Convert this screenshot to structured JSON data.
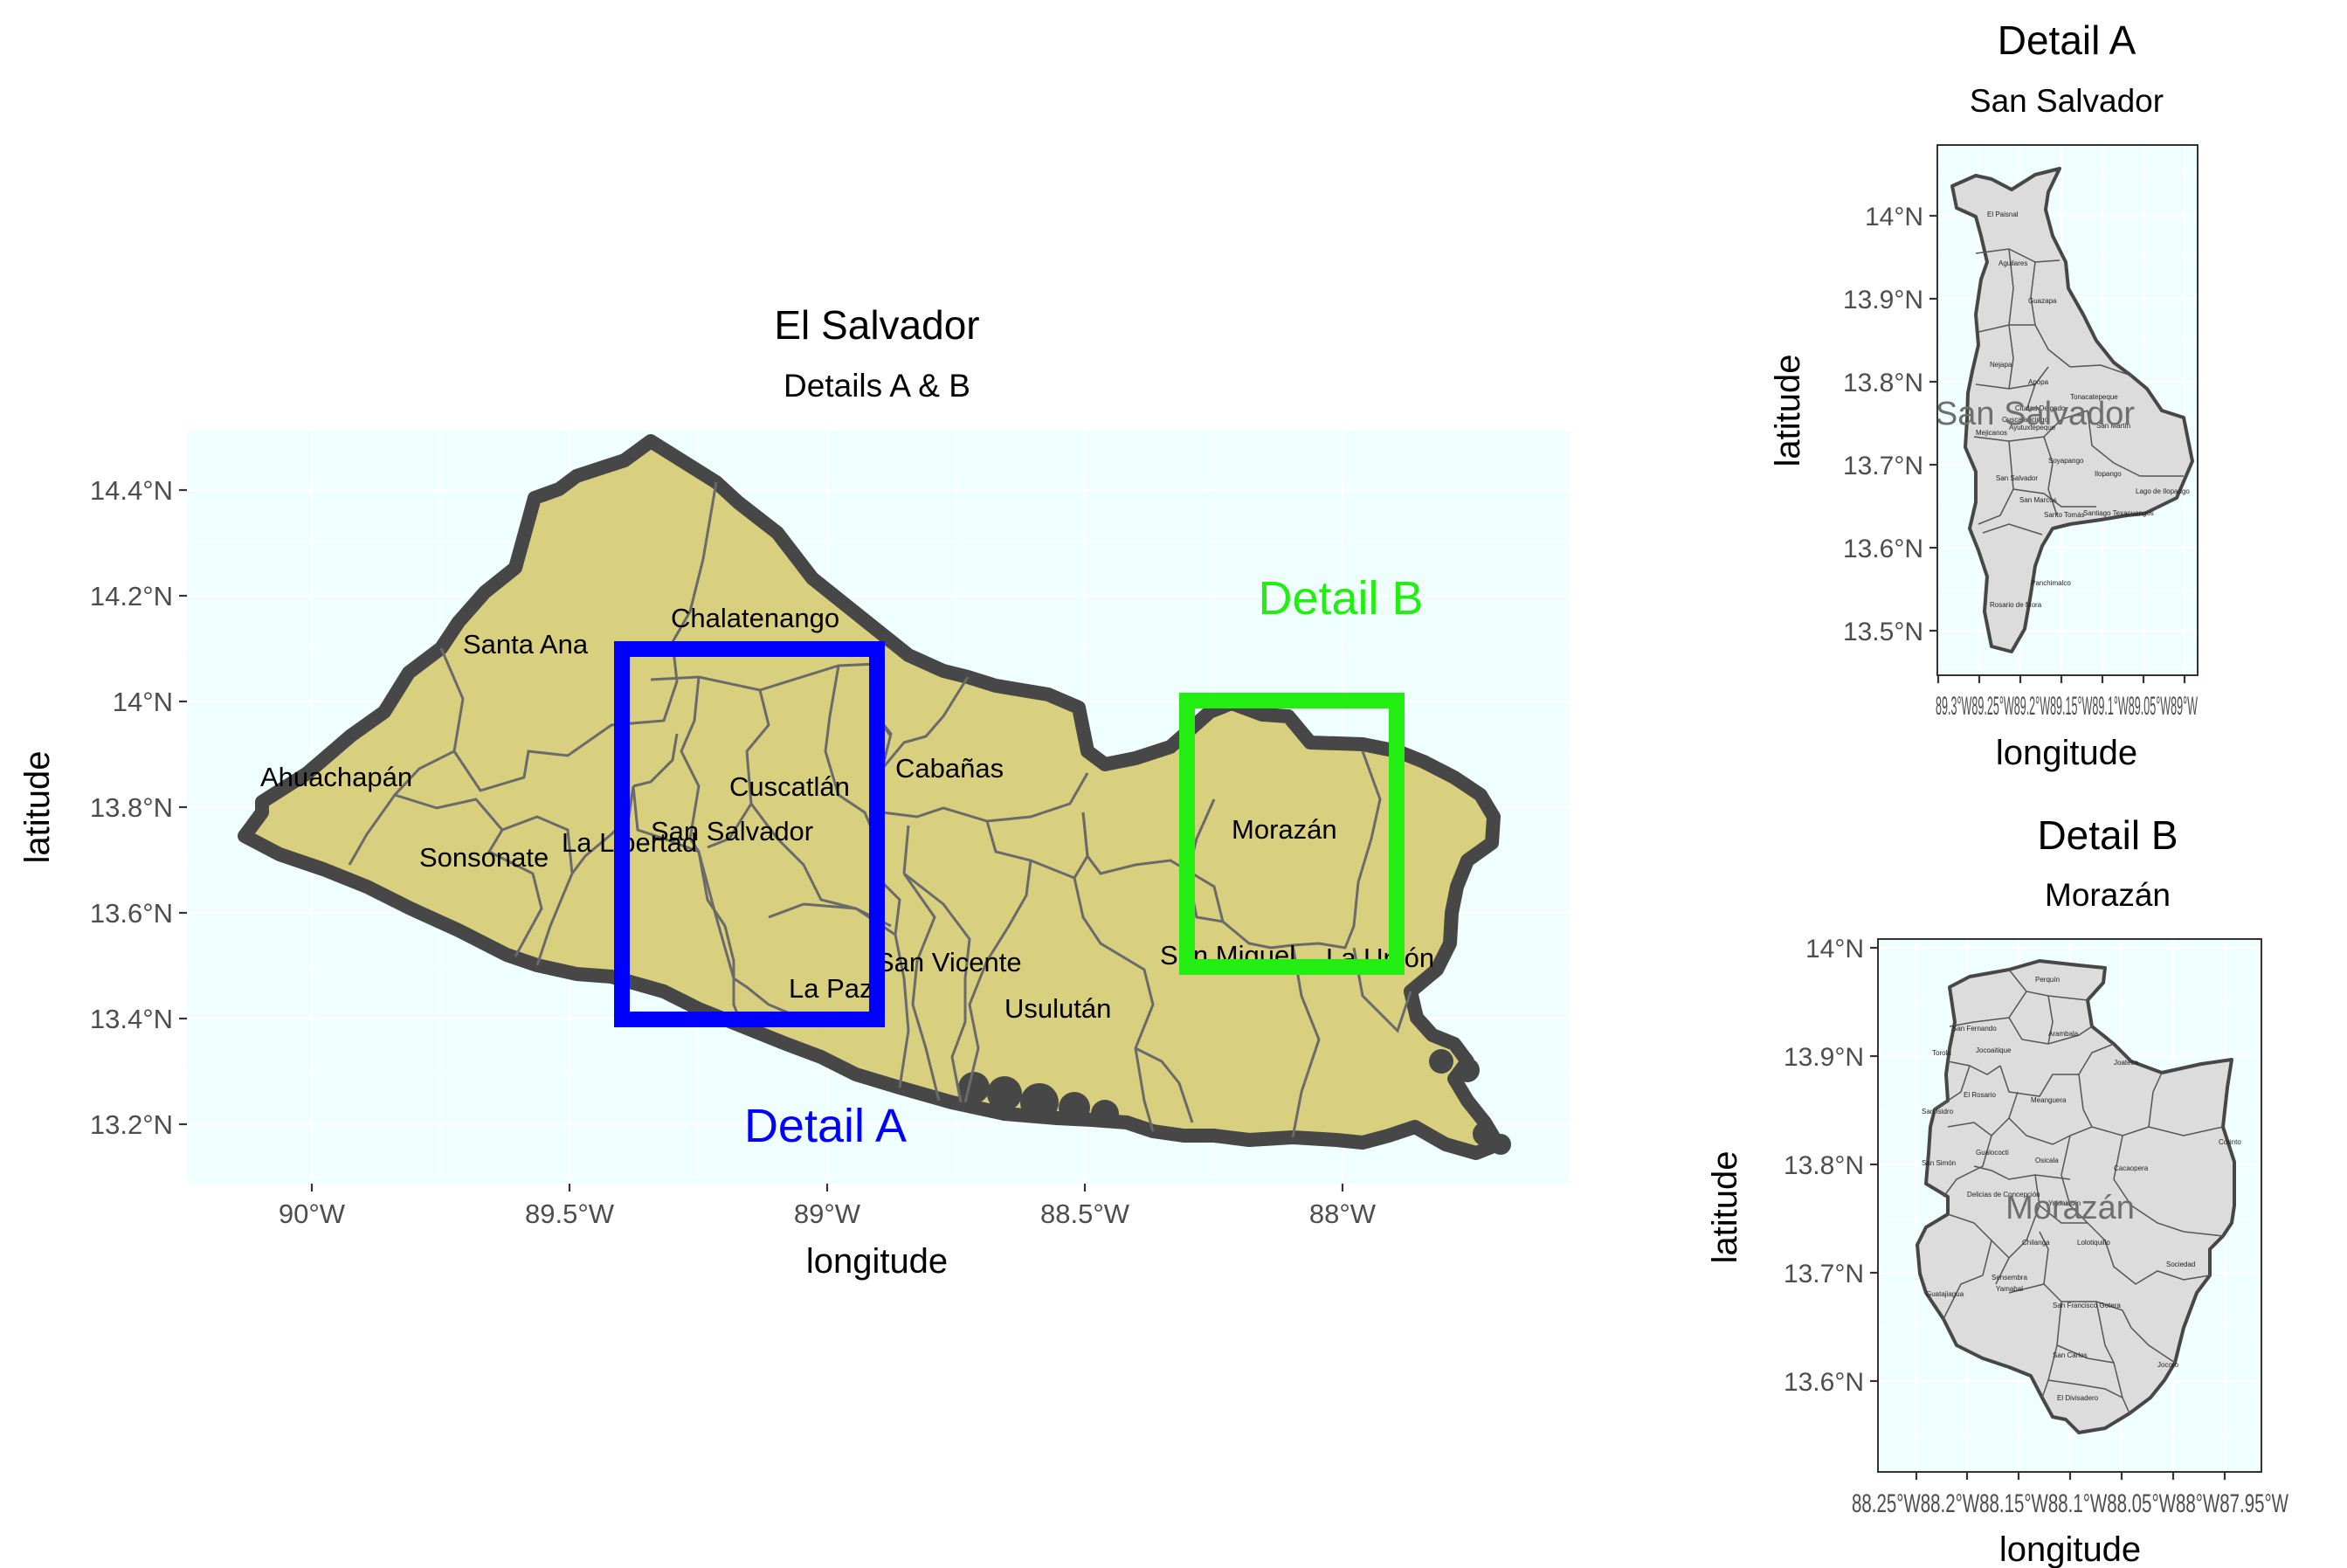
{
  "main": {
    "title": "El Salvador",
    "subtitle": "Details A & B",
    "xlabel": "longitude",
    "ylabel": "latitude",
    "x_ticks": [
      "90°W",
      "89.5°W",
      "89°W",
      "88.5°W",
      "88°W"
    ],
    "y_ticks": [
      "14.4°N",
      "14.2°N",
      "14°N",
      "13.8°N",
      "13.6°N",
      "13.4°N",
      "13.2°N"
    ],
    "departments": [
      "Santa Ana",
      "Chalatenango",
      "Ahuachapán",
      "Cuscatlán",
      "Cabañas",
      "San Salvador",
      "La Libertad",
      "Sonsonate",
      "Morazán",
      "San Vicente",
      "San Miguel",
      "La Unión",
      "La Paz",
      "Usulután"
    ],
    "detail_a_label": "Detail A",
    "detail_b_label": "Detail B",
    "detail_a_color": "#0000ff",
    "detail_b_color": "#22ee11",
    "land_color": "#d8d07f",
    "panel_color": "#eefffe"
  },
  "detail_a": {
    "title": "Detail A",
    "subtitle": "San Salvador",
    "xlabel": "longitude",
    "ylabel": "latitude",
    "x_ticks": "89.3°W89.25°W89.2°W89.15°W89.1°W89.05°W89°W",
    "y_ticks": [
      "14°N",
      "13.9°N",
      "13.8°N",
      "13.7°N",
      "13.6°N",
      "13.5°N"
    ],
    "watermark": "San Salvador",
    "municipalities": [
      "El Paisnal",
      "Aguilares",
      "Guazapa",
      "Nejapa",
      "Apopa",
      "Tonacatepeque",
      "Ciudad Delgado",
      "Cuscatancingo",
      "Mejicanos",
      "Ayutuxtepeque",
      "Soyapango",
      "San Martín",
      "Ilopango",
      "San Salvador",
      "San Marcos",
      "Lago de Ilopango",
      "Santo Tomás",
      "Santiago Texacuangos",
      "Panchimalco",
      "Rosario de Mora"
    ]
  },
  "detail_b": {
    "title": "Detail B",
    "subtitle": "Morazán",
    "xlabel": "longitude",
    "ylabel": "latitude",
    "x_ticks": "88.25°W88.2°W88.15°W88.1°W88.05°W88°W87.95°W",
    "y_ticks": [
      "14°N",
      "13.9°N",
      "13.8°N",
      "13.7°N",
      "13.6°N"
    ],
    "watermark": "Morazán",
    "municipalities": [
      "Perquín",
      "San Fernando",
      "Arambala",
      "Torola",
      "Jocoaitique",
      "Joateca",
      "El Rosario",
      "Meanguera",
      "San Isidro",
      "Gualococti",
      "Corinto",
      "San Simón",
      "Osicala",
      "Cacaopera",
      "Delicias de Concepción",
      "Yoloaiquín",
      "Chilanga",
      "Lolotiquillo",
      "Sociedad",
      "Sensembra",
      "Yamabal",
      "Guatajiagua",
      "San Francisco Gotera",
      "San Carlos",
      "Jocoro",
      "El Divisadero"
    ]
  }
}
